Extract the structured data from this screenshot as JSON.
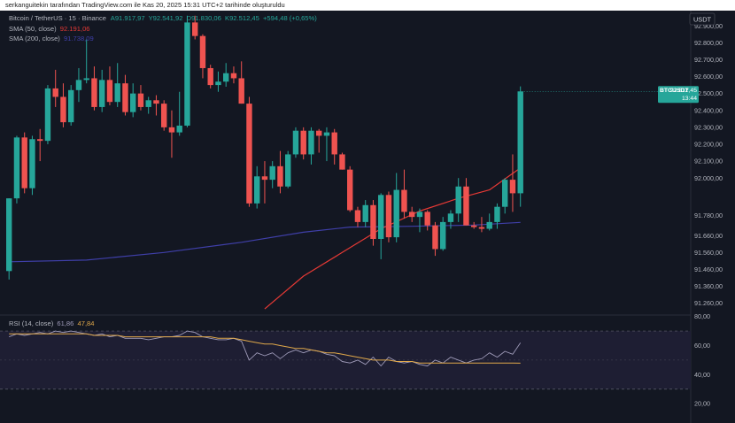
{
  "caption": "serkanguitekin tarafından TradingView.com ile Kas 20, 2025 15:31 UTC+2 tarihinde oluşturuldu",
  "currency_badge": "USDT",
  "header": {
    "symbol": "Bitcoin / TetherUS · 15 · Binance",
    "ohlc": [
      {
        "key": "A",
        "value": "91.917,97"
      },
      {
        "key": "Y",
        "value": "92.541,92"
      },
      {
        "key": "D",
        "value": "91.830,06"
      },
      {
        "key": "K",
        "value": "92.512,45"
      }
    ],
    "change": "+594,48 (+0,65%)",
    "sma50_label": "SMA (50, close)",
    "sma50_value": "92.191,06",
    "sma200_label": "SMA (200, close)",
    "sma200_value": "91.738,09",
    "rsi_label": "RSI (14, close)",
    "rsi_value1": "61,86",
    "rsi_value2": "47,84"
  },
  "price_tag": {
    "symbol": "BTCUSDT",
    "price": "92.512,45",
    "countdown": "13:44"
  },
  "colors": {
    "background": "#131722",
    "up": "#26a69a",
    "down": "#ef5350",
    "sma50": "#e53935",
    "sma200": "#3f3fa8",
    "rsi": "#9e9ab8",
    "rsi_ma": "#e0a84a",
    "rsi_band": "#1e1e33",
    "axis_text": "#b2b5be"
  },
  "chart_data": [
    {
      "type": "candlestick",
      "title": "Bitcoin / TetherUS · 15 · Binance",
      "price_axis_ticks": [
        "92.900,00",
        "92.800,00",
        "92.700,00",
        "92.600,00",
        "92.500,00",
        "92.400,00",
        "92.300,00",
        "92.200,00",
        "92.100,00",
        "92.000,00",
        "91.780,00",
        "91.660,00",
        "91.560,00",
        "91.460,00",
        "91.360,00",
        "91.260,00"
      ],
      "ylim": [
        91190,
        92990
      ],
      "candles": [
        {
          "o": 91450,
          "h": 91880,
          "l": 91400,
          "c": 91880
        },
        {
          "o": 91880,
          "h": 92250,
          "l": 91850,
          "c": 92240
        },
        {
          "o": 92240,
          "h": 92270,
          "l": 91910,
          "c": 91940
        },
        {
          "o": 91940,
          "h": 92250,
          "l": 91900,
          "c": 92230
        },
        {
          "o": 92230,
          "h": 92290,
          "l": 92100,
          "c": 92220
        },
        {
          "o": 92220,
          "h": 92550,
          "l": 92200,
          "c": 92530
        },
        {
          "o": 92530,
          "h": 92640,
          "l": 92420,
          "c": 92480
        },
        {
          "o": 92480,
          "h": 92560,
          "l": 92300,
          "c": 92330
        },
        {
          "o": 92330,
          "h": 92550,
          "l": 92310,
          "c": 92520
        },
        {
          "o": 92520,
          "h": 92650,
          "l": 92450,
          "c": 92580
        },
        {
          "o": 92580,
          "h": 92820,
          "l": 92560,
          "c": 92590
        },
        {
          "o": 92590,
          "h": 92660,
          "l": 92400,
          "c": 92420
        },
        {
          "o": 92420,
          "h": 92640,
          "l": 92390,
          "c": 92580
        },
        {
          "o": 92580,
          "h": 92660,
          "l": 92430,
          "c": 92450
        },
        {
          "o": 92450,
          "h": 92680,
          "l": 92420,
          "c": 92560
        },
        {
          "o": 92560,
          "h": 92610,
          "l": 92370,
          "c": 92390
        },
        {
          "o": 92390,
          "h": 92560,
          "l": 92360,
          "c": 92500
        },
        {
          "o": 92500,
          "h": 92550,
          "l": 92400,
          "c": 92420
        },
        {
          "o": 92420,
          "h": 92480,
          "l": 92380,
          "c": 92460
        },
        {
          "o": 92460,
          "h": 92490,
          "l": 92370,
          "c": 92440
        },
        {
          "o": 92440,
          "h": 92460,
          "l": 92280,
          "c": 92300
        },
        {
          "o": 92300,
          "h": 92400,
          "l": 92120,
          "c": 92270
        },
        {
          "o": 92270,
          "h": 92510,
          "l": 92250,
          "c": 92310
        },
        {
          "o": 92310,
          "h": 92960,
          "l": 92300,
          "c": 92920
        },
        {
          "o": 92920,
          "h": 92960,
          "l": 92820,
          "c": 92840
        },
        {
          "o": 92840,
          "h": 92850,
          "l": 92590,
          "c": 92650
        },
        {
          "o": 92650,
          "h": 92670,
          "l": 92530,
          "c": 92550
        },
        {
          "o": 92550,
          "h": 92630,
          "l": 92510,
          "c": 92570
        },
        {
          "o": 92570,
          "h": 92680,
          "l": 92540,
          "c": 92620
        },
        {
          "o": 92620,
          "h": 92660,
          "l": 92560,
          "c": 92590
        },
        {
          "o": 92590,
          "h": 92690,
          "l": 92440,
          "c": 92440
        },
        {
          "o": 92440,
          "h": 92480,
          "l": 91830,
          "c": 91850
        },
        {
          "o": 91850,
          "h": 92070,
          "l": 91820,
          "c": 92010
        },
        {
          "o": 92010,
          "h": 92100,
          "l": 91850,
          "c": 91990
        },
        {
          "o": 91990,
          "h": 92100,
          "l": 91940,
          "c": 92070
        },
        {
          "o": 92070,
          "h": 92160,
          "l": 91910,
          "c": 91950
        },
        {
          "o": 91950,
          "h": 92160,
          "l": 91940,
          "c": 92140
        },
        {
          "o": 92140,
          "h": 92300,
          "l": 92120,
          "c": 92280
        },
        {
          "o": 92280,
          "h": 92300,
          "l": 92110,
          "c": 92140
        },
        {
          "o": 92140,
          "h": 92300,
          "l": 92080,
          "c": 92280
        },
        {
          "o": 92280,
          "h": 92290,
          "l": 92150,
          "c": 92250
        },
        {
          "o": 92250,
          "h": 92300,
          "l": 92100,
          "c": 92270
        },
        {
          "o": 92270,
          "h": 92290,
          "l": 92080,
          "c": 92140
        },
        {
          "o": 92140,
          "h": 92150,
          "l": 92050,
          "c": 92050
        },
        {
          "o": 92050,
          "h": 92070,
          "l": 91800,
          "c": 91810
        },
        {
          "o": 91810,
          "h": 91830,
          "l": 91710,
          "c": 91740
        },
        {
          "o": 91740,
          "h": 91870,
          "l": 91710,
          "c": 91840
        },
        {
          "o": 91840,
          "h": 91870,
          "l": 91600,
          "c": 91640
        },
        {
          "o": 91640,
          "h": 91910,
          "l": 91520,
          "c": 91900
        },
        {
          "o": 91900,
          "h": 91920,
          "l": 91620,
          "c": 91650
        },
        {
          "o": 91650,
          "h": 92030,
          "l": 91620,
          "c": 91930
        },
        {
          "o": 91930,
          "h": 92050,
          "l": 91760,
          "c": 91800
        },
        {
          "o": 91800,
          "h": 91830,
          "l": 91740,
          "c": 91770
        },
        {
          "o": 91770,
          "h": 91820,
          "l": 91680,
          "c": 91800
        },
        {
          "o": 91800,
          "h": 91810,
          "l": 91690,
          "c": 91720
        },
        {
          "o": 91720,
          "h": 91740,
          "l": 91540,
          "c": 91580
        },
        {
          "o": 91580,
          "h": 91770,
          "l": 91570,
          "c": 91740
        },
        {
          "o": 91740,
          "h": 91810,
          "l": 91700,
          "c": 91790
        },
        {
          "o": 91790,
          "h": 92000,
          "l": 91740,
          "c": 91950
        },
        {
          "o": 91950,
          "h": 92000,
          "l": 91720,
          "c": 91720
        },
        {
          "o": 91720,
          "h": 91740,
          "l": 91700,
          "c": 91710
        },
        {
          "o": 91710,
          "h": 91770,
          "l": 91680,
          "c": 91700
        },
        {
          "o": 91700,
          "h": 91790,
          "l": 91690,
          "c": 91740
        },
        {
          "o": 91740,
          "h": 91850,
          "l": 91700,
          "c": 91830
        },
        {
          "o": 91830,
          "h": 92000,
          "l": 91790,
          "c": 91990
        },
        {
          "o": 91990,
          "h": 92140,
          "l": 91800,
          "c": 91910
        },
        {
          "o": 91910,
          "h": 92541.92,
          "l": 91830.06,
          "c": 92512.45
        }
      ],
      "sma50": [
        [
          33,
          91226
        ],
        [
          38,
          91420
        ],
        [
          43,
          91560
        ],
        [
          48,
          91700
        ],
        [
          53,
          91805
        ],
        [
          58,
          91880
        ],
        [
          62,
          91930
        ],
        [
          66,
          92060
        ],
        [
          66,
          92160
        ]
      ],
      "sma200": [
        [
          0,
          91505
        ],
        [
          10,
          91515
        ],
        [
          20,
          91560
        ],
        [
          30,
          91620
        ],
        [
          38,
          91680
        ],
        [
          44,
          91710
        ],
        [
          52,
          91715
        ],
        [
          60,
          91722
        ],
        [
          66,
          91738.09
        ]
      ]
    },
    {
      "type": "line",
      "title": "RSI (14, close)",
      "axis_ticks": [
        "80,00",
        "60,00",
        "40,00",
        "20,00"
      ],
      "ylim": [
        14,
        81
      ],
      "band": [
        30,
        70
      ],
      "series": [
        {
          "name": "RSI (14, close)",
          "values": [
            66,
            68,
            67,
            68,
            69,
            68,
            70,
            69,
            70,
            69,
            68,
            67,
            68,
            66,
            67,
            65,
            65,
            65,
            64,
            65,
            66,
            66,
            67,
            70,
            69,
            66,
            65,
            64,
            64,
            65,
            63,
            50,
            55,
            53,
            55,
            51,
            55,
            57,
            55,
            57,
            56,
            54,
            53,
            49,
            48,
            50,
            47,
            52,
            46,
            52,
            49,
            48,
            49,
            47,
            46,
            50,
            48,
            52,
            50,
            48,
            50,
            51,
            55,
            52,
            56,
            54,
            61.86
          ]
        },
        {
          "name": "RSI MA",
          "values": [
            68,
            68,
            68,
            68,
            68,
            68,
            68,
            68,
            68,
            68,
            68,
            67,
            67,
            67,
            67,
            66,
            66,
            66,
            66,
            66,
            66,
            66,
            66,
            66,
            66,
            66,
            66,
            65,
            65,
            65,
            64,
            63,
            62,
            61,
            61,
            60,
            59,
            58,
            58,
            57,
            56,
            55,
            55,
            54,
            53,
            52,
            51,
            50,
            50,
            50,
            49,
            49,
            49,
            48,
            48,
            48,
            48,
            48,
            48,
            48,
            48,
            48,
            48,
            48,
            48,
            48,
            47.84
          ]
        }
      ]
    }
  ]
}
